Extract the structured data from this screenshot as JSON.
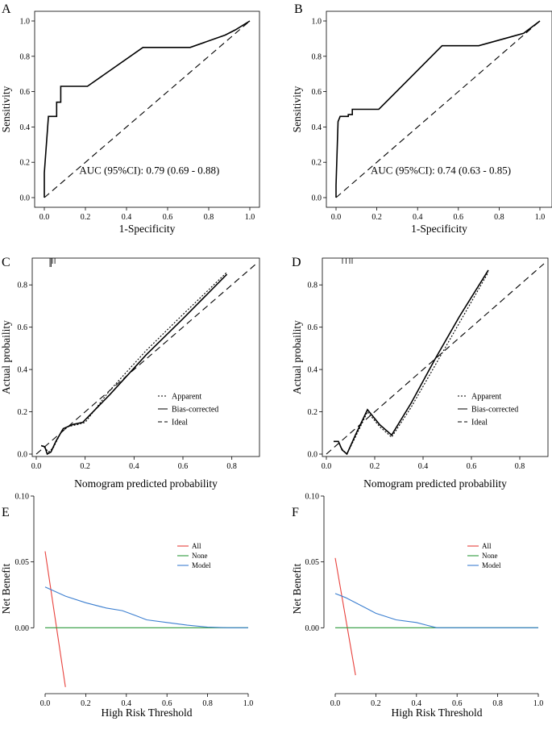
{
  "chart_data": [
    {
      "id": "A",
      "panel_label": "A",
      "type": "line",
      "subtype": "roc",
      "xlabel": "1-Specificity",
      "ylabel": "Sensitivity",
      "xlim": [
        0,
        1
      ],
      "ylim": [
        0,
        1
      ],
      "xticks": [
        "0.0",
        "0.2",
        "0.4",
        "0.6",
        "0.8",
        "1.0"
      ],
      "yticks": [
        "0.0",
        "0.2",
        "0.4",
        "0.6",
        "0.8",
        "1.0"
      ],
      "annotation": "AUC (95%CI): 0.79 (0.69 - 0.88)",
      "series": [
        {
          "name": "ROC",
          "style": "solid",
          "x": [
            0,
            0,
            0.02,
            0.02,
            0.06,
            0.06,
            0.08,
            0.08,
            0.21,
            0.48,
            0.71,
            0.88,
            0.93,
            1.0
          ],
          "y": [
            0,
            0.14,
            0.46,
            0.46,
            0.46,
            0.54,
            0.54,
            0.63,
            0.63,
            0.85,
            0.85,
            0.92,
            0.95,
            1.0
          ]
        },
        {
          "name": "Reference",
          "style": "dashed",
          "x": [
            0,
            1
          ],
          "y": [
            0,
            1
          ]
        }
      ]
    },
    {
      "id": "B",
      "panel_label": "B",
      "type": "line",
      "subtype": "roc",
      "xlabel": "1-Specificity",
      "ylabel": "Sensitivity",
      "xlim": [
        0,
        1
      ],
      "ylim": [
        0,
        1
      ],
      "xticks": [
        "0.0",
        "0.2",
        "0.4",
        "0.6",
        "0.8",
        "1.0"
      ],
      "yticks": [
        "0.0",
        "0.2",
        "0.4",
        "0.6",
        "0.8",
        "1.0"
      ],
      "annotation": "AUC (95%CI): 0.74 (0.63 - 0.85)",
      "series": [
        {
          "name": "ROC",
          "style": "solid",
          "x": [
            0,
            0,
            0.01,
            0.01,
            0.02,
            0.06,
            0.06,
            0.08,
            0.08,
            0.21,
            0.52,
            0.7,
            0.92,
            1.0
          ],
          "y": [
            0,
            0.07,
            0.43,
            0.43,
            0.46,
            0.46,
            0.47,
            0.47,
            0.5,
            0.5,
            0.86,
            0.86,
            0.93,
            1.0
          ]
        },
        {
          "name": "Reference",
          "style": "dashed",
          "x": [
            0,
            1
          ],
          "y": [
            0,
            1
          ]
        }
      ]
    },
    {
      "id": "C",
      "panel_label": "C",
      "type": "line",
      "subtype": "calibration",
      "xlabel": "Nomogram predicted probability",
      "ylabel": "Actual probaility",
      "xlim": [
        0,
        0.9
      ],
      "ylim": [
        0,
        0.9
      ],
      "xticks": [
        "0.0",
        "0.2",
        "0.4",
        "0.6",
        "0.8"
      ],
      "yticks": [
        "0.0",
        "0.2",
        "0.4",
        "0.6",
        "0.8"
      ],
      "legend": [
        "Apparent",
        "Bias-corrected",
        "Ideal"
      ],
      "rug_x": [
        0.01,
        0.015,
        0.02,
        0.03
      ],
      "series": [
        {
          "name": "Apparent",
          "style": "dotted",
          "x": [
            0.02,
            0.035,
            0.05,
            0.07,
            0.1,
            0.13,
            0.17,
            0.2,
            0.3,
            0.45,
            0.6,
            0.78
          ],
          "y": [
            0.04,
            0.03,
            0.01,
            0.03,
            0.1,
            0.13,
            0.14,
            0.15,
            0.3,
            0.49,
            0.66,
            0.86
          ]
        },
        {
          "name": "Bias-corrected",
          "style": "solid",
          "x": [
            0.02,
            0.035,
            0.045,
            0.06,
            0.08,
            0.11,
            0.15,
            0.19,
            0.3,
            0.45,
            0.6,
            0.78
          ],
          "y": [
            0.04,
            0.035,
            0.0,
            0.01,
            0.06,
            0.12,
            0.14,
            0.15,
            0.28,
            0.47,
            0.64,
            0.85
          ]
        },
        {
          "name": "Ideal",
          "style": "dashed",
          "x": [
            0,
            0.9
          ],
          "y": [
            0,
            0.9
          ]
        }
      ]
    },
    {
      "id": "D",
      "panel_label": "D",
      "type": "line",
      "subtype": "calibration",
      "xlabel": "Nomogram predicted probability",
      "ylabel": "Actual probaility",
      "xlim": [
        0,
        0.9
      ],
      "ylim": [
        0,
        0.9
      ],
      "xticks": [
        "0.0",
        "0.2",
        "0.4",
        "0.6",
        "0.8"
      ],
      "yticks": [
        "0.0",
        "0.2",
        "0.4",
        "0.6",
        "0.8"
      ],
      "legend": [
        "Apparent",
        "Bias-corrected",
        "Ideal"
      ],
      "rug_x": [
        0.02,
        0.035,
        0.05,
        0.06
      ],
      "series": [
        {
          "name": "Apparent",
          "style": "dotted",
          "x": [
            0.03,
            0.05,
            0.06,
            0.085,
            0.12,
            0.17,
            0.22,
            0.27,
            0.35,
            0.45,
            0.55,
            0.67
          ],
          "y": [
            0.06,
            0.06,
            0.03,
            0.0,
            0.08,
            0.2,
            0.13,
            0.08,
            0.22,
            0.42,
            0.62,
            0.86
          ]
        },
        {
          "name": "Bias-corrected",
          "style": "solid",
          "x": [
            0.03,
            0.05,
            0.065,
            0.085,
            0.12,
            0.17,
            0.22,
            0.27,
            0.35,
            0.45,
            0.55,
            0.67
          ],
          "y": [
            0.06,
            0.06,
            0.02,
            0.0,
            0.09,
            0.21,
            0.14,
            0.09,
            0.24,
            0.45,
            0.65,
            0.87
          ]
        },
        {
          "name": "Ideal",
          "style": "dashed",
          "x": [
            0,
            0.9
          ],
          "y": [
            0,
            0.9
          ]
        }
      ]
    },
    {
      "id": "E",
      "panel_label": "E",
      "type": "line",
      "subtype": "decision-curve",
      "xlabel": "High Risk Threshold",
      "ylabel": "Net Benefit",
      "xlim": [
        0,
        1
      ],
      "ylim": [
        -0.05,
        0.1
      ],
      "xticks": [
        "0.0",
        "0.2",
        "0.4",
        "0.6",
        "0.8",
        "1.0"
      ],
      "yticks": [
        "0.00",
        "0.05",
        "0.10"
      ],
      "legend": [
        "All",
        "None",
        "Model"
      ],
      "series": [
        {
          "name": "All",
          "color": "#e8413c",
          "x": [
            0,
            0.1
          ],
          "y": [
            0.058,
            -0.045
          ]
        },
        {
          "name": "None",
          "color": "#2e9a3c",
          "x": [
            0,
            1.0
          ],
          "y": [
            0,
            0
          ]
        },
        {
          "name": "Model",
          "color": "#3c7fd0",
          "x": [
            0,
            0.1,
            0.2,
            0.3,
            0.38,
            0.45,
            0.5,
            0.6,
            0.7,
            0.8,
            0.9,
            1.0
          ],
          "y": [
            0.031,
            0.024,
            0.019,
            0.015,
            0.013,
            0.009,
            0.006,
            0.004,
            0.002,
            0.0005,
            0,
            0
          ]
        }
      ]
    },
    {
      "id": "F",
      "panel_label": "F",
      "type": "line",
      "subtype": "decision-curve",
      "xlabel": "High Risk Threshold",
      "ylabel": "Net Benefit",
      "xlim": [
        0,
        1
      ],
      "ylim": [
        -0.05,
        0.1
      ],
      "xticks": [
        "0.0",
        "0.2",
        "0.4",
        "0.6",
        "0.8",
        "1.0"
      ],
      "yticks": [
        "0.00",
        "0.05",
        "0.10"
      ],
      "legend": [
        "All",
        "None",
        "Model"
      ],
      "series": [
        {
          "name": "All",
          "color": "#e8413c",
          "x": [
            0,
            0.1
          ],
          "y": [
            0.053,
            -0.036
          ]
        },
        {
          "name": "None",
          "color": "#2e9a3c",
          "x": [
            0,
            1.0
          ],
          "y": [
            0,
            0
          ]
        },
        {
          "name": "Model",
          "color": "#3c7fd0",
          "x": [
            0,
            0.05,
            0.1,
            0.15,
            0.2,
            0.3,
            0.4,
            0.45,
            0.5,
            0.6,
            0.7,
            0.8,
            1.0
          ],
          "y": [
            0.026,
            0.023,
            0.019,
            0.015,
            0.011,
            0.006,
            0.004,
            0.002,
            0.0,
            0.0,
            0.0,
            0.0,
            0.0
          ]
        }
      ]
    }
  ]
}
